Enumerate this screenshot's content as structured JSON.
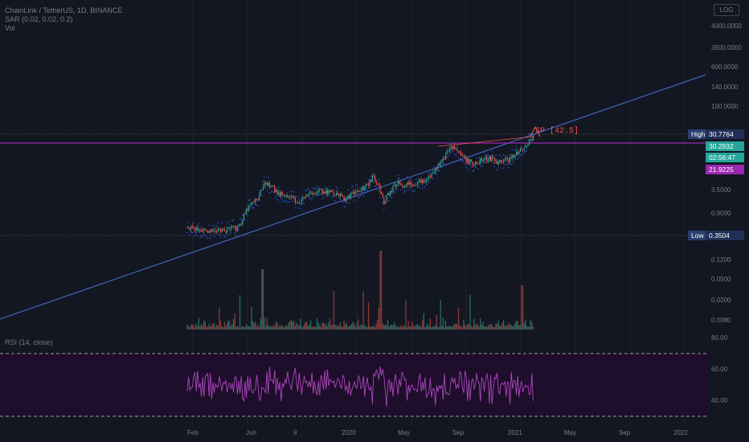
{
  "legend": {
    "symbol_line": "ChainLink / TetherUS, 1D, BINANCE",
    "sar_line": "SAR (0.02, 0.02, 0.2)",
    "vol_line": "Vol"
  },
  "log_button": "LOG",
  "price_axis_labels": [
    "4000.0000",
    "3500.0000",
    "600.0000",
    "140.0000",
    "100.0000",
    "3.5000",
    "0.9000",
    "0.1200",
    "0.0500",
    "0.0200",
    "0.0080"
  ],
  "rsi_axis_labels": [
    "80.00",
    "60.00",
    "40.00"
  ],
  "rsi_label": "RSI (14, close)",
  "tags": {
    "high": {
      "label": "High",
      "value": "30.7764"
    },
    "current": {
      "value": "30.2932"
    },
    "countdown": {
      "value": "02:56:47"
    },
    "level": {
      "value": "21.9225"
    },
    "low": {
      "label": "Low",
      "value": "0.3504"
    }
  },
  "annotation": "SP [42.5]",
  "x_axis_labels": [
    "Feb",
    "Jun",
    "9",
    "2020",
    "May",
    "Sep",
    "2021",
    "May",
    "Sep",
    "2022"
  ],
  "colors": {
    "background": "#131722",
    "up": "#26a69a",
    "down": "#ef5350",
    "sar": "#2962ff",
    "trendline": "#4a72d9",
    "magenta_line": "#ab47bc",
    "rsi_line": "#ab47bc",
    "rsi_band": "#1e0d2b",
    "annotation": "#f05350"
  },
  "chart_data": {
    "type": "candlestick",
    "symbol": "ChainLink / TetherUS",
    "interval": "1D",
    "exchange": "BINANCE",
    "log_scale": true,
    "high": 30.7764,
    "low": 0.3504,
    "last_price": 30.2932,
    "horizontal_level": 21.9225,
    "annotation": "SP [42.5]",
    "indicators": [
      "SAR (0.02, 0.02, 0.2)",
      "Vol",
      "RSI (14, close)"
    ],
    "rsi_levels": [
      70,
      30
    ]
  }
}
